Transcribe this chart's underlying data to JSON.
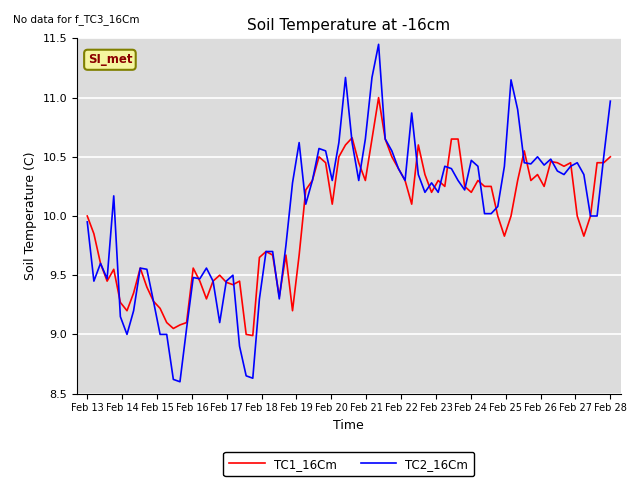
{
  "title": "Soil Temperature at -16cm",
  "xlabel": "Time",
  "ylabel": "Soil Temperature (C)",
  "note": "No data for f_TC3_16Cm",
  "legend_label": "SI_met",
  "ylim": [
    8.5,
    11.5
  ],
  "background_color": "#dcdcdc",
  "tc1_color": "red",
  "tc2_color": "blue",
  "tc1_label": "TC1_16Cm",
  "tc2_label": "TC2_16Cm",
  "x_ticks": [
    "Feb 13",
    "Feb 14",
    "Feb 15",
    "Feb 16",
    "Feb 17",
    "Feb 18",
    "Feb 19",
    "Feb 20",
    "Feb 21",
    "Feb 22",
    "Feb 23",
    "Feb 24",
    "Feb 25",
    "Feb 26",
    "Feb 27",
    "Feb 28"
  ],
  "tc1_y": [
    10.0,
    9.85,
    9.6,
    9.45,
    9.55,
    9.27,
    9.2,
    9.35,
    9.56,
    9.4,
    9.28,
    9.22,
    9.1,
    9.05,
    9.08,
    9.1,
    9.56,
    9.45,
    9.3,
    9.45,
    9.5,
    9.44,
    9.42,
    9.45,
    9.0,
    8.99,
    9.65,
    9.7,
    9.67,
    9.32,
    9.67,
    9.2,
    9.67,
    10.22,
    10.3,
    10.5,
    10.45,
    10.1,
    10.5,
    10.6,
    10.66,
    10.45,
    10.3,
    10.65,
    11.0,
    10.65,
    10.5,
    10.4,
    10.3,
    10.1,
    10.6,
    10.35,
    10.2,
    10.3,
    10.25,
    10.65,
    10.65,
    10.25,
    10.2,
    10.3,
    10.25,
    10.25,
    10.0,
    9.83,
    10.0,
    10.3,
    10.55,
    10.3,
    10.35,
    10.25,
    10.46,
    10.45,
    10.42,
    10.45,
    10.0,
    9.83,
    10.0,
    10.45,
    10.45,
    10.5
  ],
  "tc2_y": [
    9.95,
    9.45,
    9.6,
    9.47,
    10.17,
    9.15,
    9.0,
    9.2,
    9.56,
    9.55,
    9.28,
    9.0,
    9.0,
    8.62,
    8.6,
    9.05,
    9.48,
    9.47,
    9.56,
    9.45,
    9.1,
    9.45,
    9.5,
    8.9,
    8.65,
    8.63,
    9.3,
    9.7,
    9.7,
    9.3,
    9.75,
    10.28,
    10.62,
    10.1,
    10.3,
    10.57,
    10.55,
    10.3,
    10.62,
    11.17,
    10.62,
    10.3,
    10.65,
    11.17,
    11.45,
    10.65,
    10.55,
    10.4,
    10.3,
    10.87,
    10.35,
    10.2,
    10.28,
    10.2,
    10.42,
    10.4,
    10.3,
    10.22,
    10.47,
    10.42,
    10.02,
    10.02,
    10.08,
    10.42,
    11.15,
    10.9,
    10.45,
    10.44,
    10.5,
    10.43,
    10.48,
    10.38,
    10.35,
    10.42,
    10.45,
    10.35,
    10.0,
    10.0,
    10.5,
    10.97
  ]
}
